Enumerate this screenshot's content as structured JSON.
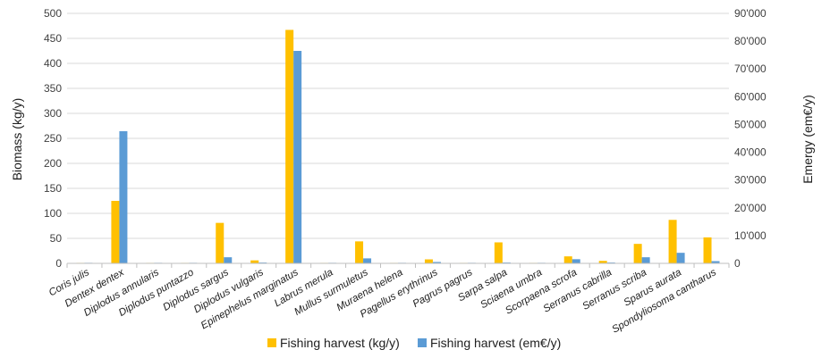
{
  "chart_data": {
    "type": "bar",
    "categories": [
      "Coris julis",
      "Dentex dentex",
      "Diplodus annularis",
      "Diplodus puntazzo",
      "Diplodus sargus",
      "Diplodus vulgaris",
      "Epinephelus marginatus",
      "Labrus merula",
      "Mullus surmuletus",
      "Muraena helena",
      "Pagellus erythrinus",
      "Pagrus pagrus",
      "Sarpa salpa",
      "Sciaena umbra",
      "Scorpaena scrofa",
      "Serranus cabrilla",
      "Serranus scriba",
      "Sparus aurata",
      "Spondyliosoma cantharus"
    ],
    "series": [
      {
        "name": "Fishing harvest (kg/y)",
        "axis": "left",
        "color": "#FFC000",
        "values": [
          1,
          125,
          1,
          1,
          81,
          6,
          467,
          1,
          44,
          1,
          8,
          1,
          42,
          1,
          14,
          5,
          39,
          87,
          52
        ]
      },
      {
        "name": "Fishing harvest (em€/y)",
        "axis": "right",
        "color": "#5B9BD5",
        "values": [
          200,
          47600,
          200,
          200,
          2200,
          300,
          76500,
          200,
          1800,
          200,
          500,
          200,
          300,
          200,
          1500,
          300,
          2200,
          3800,
          800
        ]
      }
    ],
    "ylabel": "Biomass (kg/y)",
    "ylabel_right": "Emergy (em€/y)",
    "ylim": [
      0,
      500
    ],
    "yticks": [
      "0",
      "50",
      "100",
      "150",
      "200",
      "250",
      "300",
      "350",
      "400",
      "450",
      "500"
    ],
    "ylim_right": [
      0,
      90000
    ],
    "yticks_right": [
      "0",
      "10'000",
      "20'000",
      "30'000",
      "40'000",
      "50'000",
      "60'000",
      "70'000",
      "80'000",
      "90'000"
    ],
    "grid": true,
    "legend": "bottom"
  }
}
